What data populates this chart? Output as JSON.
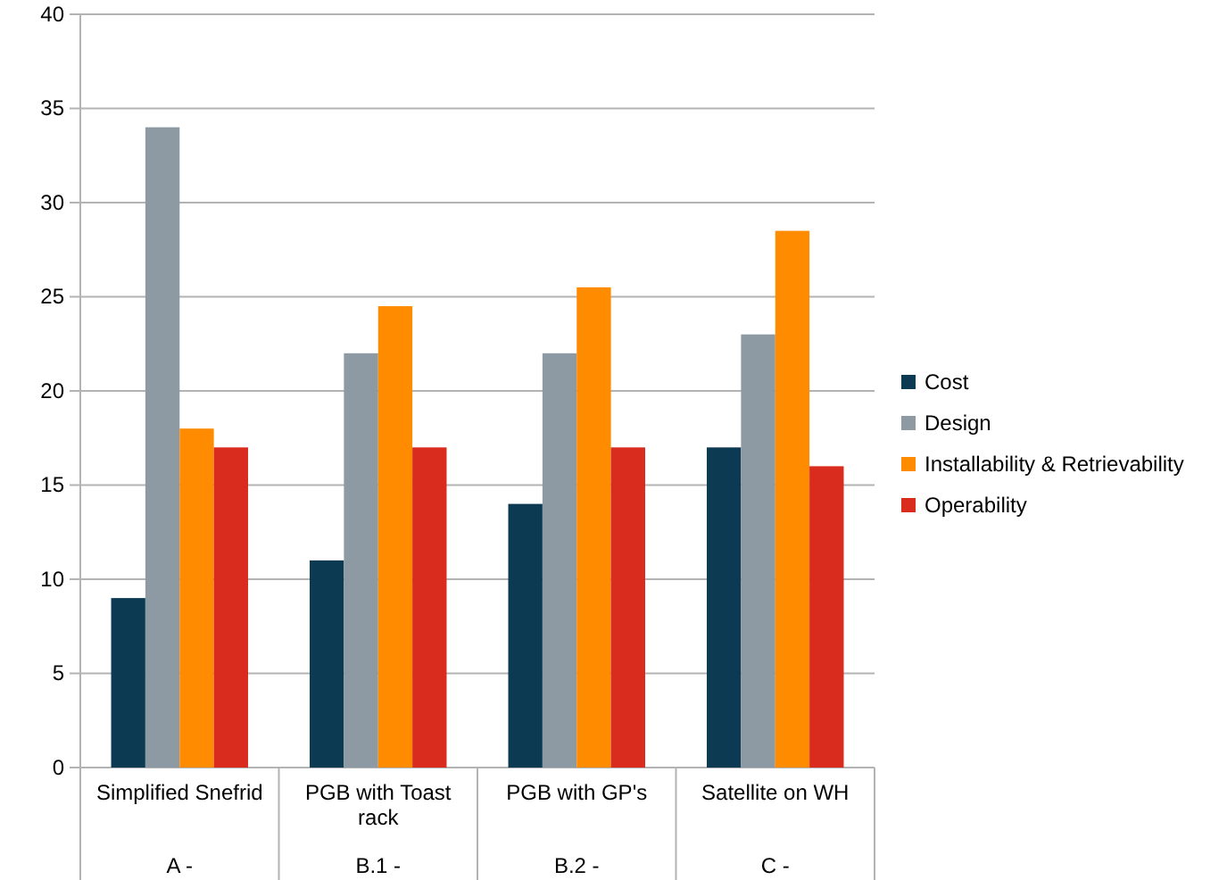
{
  "chart_data": {
    "type": "bar",
    "categories": [
      "Simplified Snefrid\nA -",
      "PGB with Toast rack\nB.1 -",
      "PGB with GP's\nB.2 -",
      "Satellite on WH\nC -"
    ],
    "series": [
      {
        "name": "Cost",
        "color": "#0b3a52",
        "values": [
          9,
          11,
          14,
          17
        ]
      },
      {
        "name": "Design",
        "color": "#8d99a3",
        "values": [
          34,
          22,
          22,
          23
        ]
      },
      {
        "name": "Installability & Retrievability",
        "color": "#ff8b00",
        "values": [
          18,
          24.5,
          25.5,
          28.5
        ]
      },
      {
        "name": "Operability",
        "color": "#d92b1e",
        "values": [
          17,
          17,
          17,
          16
        ]
      }
    ],
    "ylim": [
      0,
      40
    ],
    "yticks": [
      0,
      5,
      10,
      15,
      20,
      25,
      30,
      35,
      40
    ],
    "grid": "y",
    "legend": "right"
  }
}
